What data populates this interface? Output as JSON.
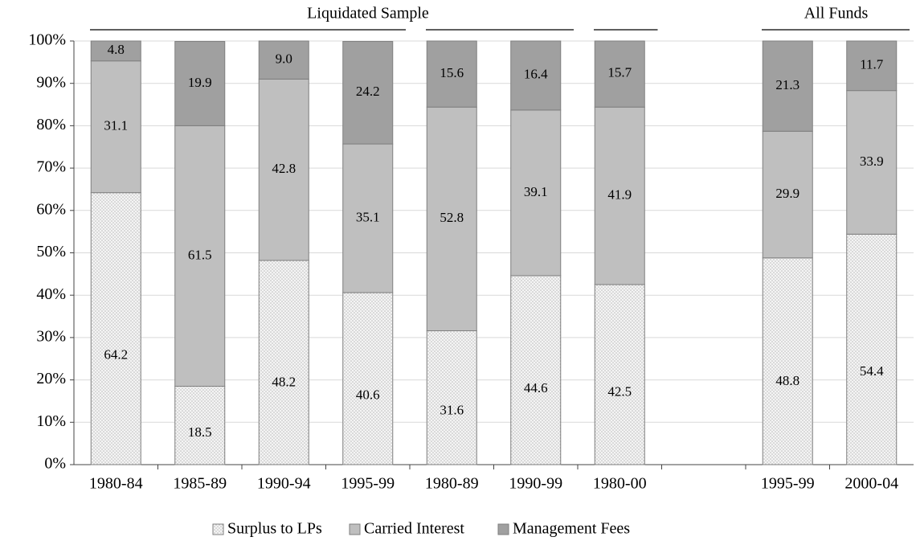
{
  "chart_data": {
    "type": "stacked_bar",
    "categories": [
      "1980-84",
      "1985-89",
      "1990-94",
      "1995-99",
      "1980-89",
      "1990-99",
      "1980-00",
      null,
      "1995-99",
      "2000-04"
    ],
    "series": [
      {
        "name": "Surplus to LPs",
        "color": "#f2f2f2",
        "values": [
          64.2,
          18.5,
          48.2,
          40.6,
          31.6,
          44.6,
          42.5,
          null,
          48.8,
          54.4
        ],
        "value_labels": [
          "64.2",
          "18.5",
          "48.2",
          "40.6",
          "31.6",
          "44.6",
          "42.5",
          null,
          "48.8",
          "54.4"
        ]
      },
      {
        "name": "Carried Interest",
        "color": "#bfbfbf",
        "values": [
          31.1,
          61.5,
          42.8,
          35.1,
          52.8,
          39.1,
          41.9,
          null,
          29.9,
          33.9
        ],
        "value_labels": [
          "31.1",
          "61.5",
          "42.8",
          "35.1",
          "52.8",
          "39.1",
          "41.9",
          null,
          "29.9",
          "33.9"
        ]
      },
      {
        "name": "Management Fees",
        "color": "#a0a0a0",
        "values": [
          4.8,
          19.9,
          9,
          24.2,
          15.6,
          16.4,
          15.7,
          null,
          21.3,
          11.7
        ],
        "value_labels": [
          "4.8",
          "19.9",
          "9.0",
          "24.2",
          "15.6",
          "16.4",
          "15.7",
          null,
          "21.3",
          "11.7"
        ]
      }
    ],
    "annotations": [
      "Liquidated Sample",
      "All Funds"
    ],
    "ylim": [
      0,
      100
    ],
    "yticks": [
      {
        "value": 0,
        "label": "0%"
      },
      {
        "value": 10,
        "label": "10%"
      },
      {
        "value": 20,
        "label": "20%"
      },
      {
        "value": 30,
        "label": "30%"
      },
      {
        "value": 40,
        "label": "40%"
      },
      {
        "value": 50,
        "label": "50%"
      },
      {
        "value": 60,
        "label": "60%"
      },
      {
        "value": 70,
        "label": "70%"
      },
      {
        "value": 80,
        "label": "80%"
      },
      {
        "value": 90,
        "label": "90%"
      },
      {
        "value": 100,
        "label": "100%"
      }
    ],
    "grid": true,
    "legend": "bottom"
  }
}
